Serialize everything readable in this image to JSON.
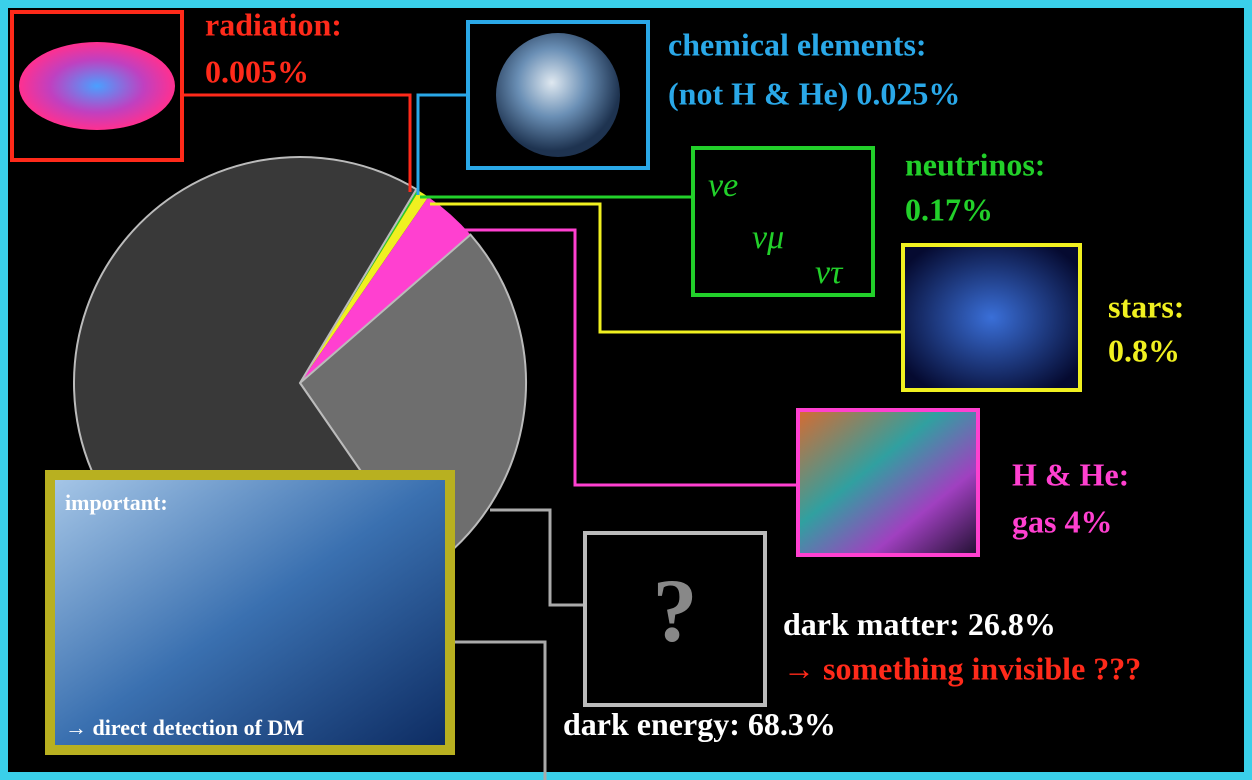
{
  "chart_data": {
    "type": "pie",
    "categories": [
      "radiation:",
      "chemical elements:",
      "neutrinos:",
      "stars:",
      "H & He:",
      "dark matter:",
      "dark energy:"
    ],
    "values": [
      0.005,
      0.025,
      0.17,
      0.8,
      4,
      26.8,
      68.3
    ],
    "value_labels": [
      "0.005%",
      "(not H & He) 0.025%",
      "0.17%",
      "0.8%",
      "gas 4%",
      "26.8%",
      "68.3%"
    ],
    "colors": [
      "#ff2a1a",
      "#2aa8e8",
      "#22d02a",
      "#f0f020",
      "#ff40d0",
      "#6e6e6e",
      "#393939"
    ],
    "label_colors": [
      "#ff2a1a",
      "#2aa8e8",
      "#22d02a",
      "#f0f020",
      "#ff40d0",
      "#ffffff",
      "#ffffff"
    ],
    "annotations": [
      "→ something invisible ???",
      "important:",
      "→ direct detection of DM",
      "?"
    ],
    "neutrino_symbols": [
      "νe",
      "νμ",
      "ντ"
    ]
  }
}
